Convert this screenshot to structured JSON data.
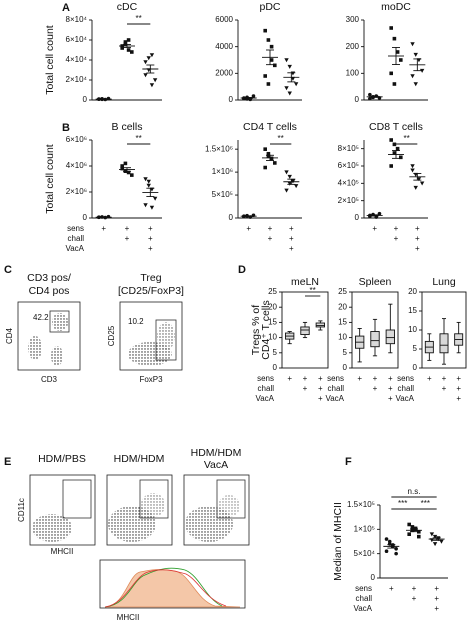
{
  "panel_labels": [
    "A",
    "B",
    "C",
    "D",
    "E",
    "F"
  ],
  "flow_c": [
    {
      "title": [
        "CD3 pos/",
        "CD4 pos"
      ],
      "gate": "42.2",
      "ylabel": "CD4",
      "xlabel": "CD3"
    },
    {
      "title": [
        "Treg",
        "[CD25/FoxP3]"
      ],
      "gate": "10.2",
      "ylabel": "CD25",
      "xlabel": "FoxP3"
    }
  ],
  "flow_e": {
    "plots": [
      {
        "title": [
          "HDM/PBS"
        ]
      },
      {
        "title": [
          "HDM/HDM"
        ]
      },
      {
        "title": [
          "HDM/HDM",
          "VacA"
        ]
      }
    ],
    "ylabel": "CD11c",
    "xlabel": "MHCII",
    "histogram_xlabel": "MHCII"
  },
  "chart_data": [
    {
      "type": "dot",
      "title": "cDC",
      "ylabel": "Total cell count",
      "ylim": [
        0,
        80000
      ],
      "yticks": [
        0,
        {
          "value": 20000,
          "label": "2×10⁴"
        },
        {
          "value": 40000,
          "label": "4×10⁴"
        },
        {
          "value": 60000,
          "label": "6×10⁴"
        },
        {
          "value": 80000,
          "label": "8×10⁴"
        }
      ],
      "groups": [
        [
          800,
          1200,
          500,
          1500,
          900,
          700
        ],
        [
          52000,
          56000,
          60000,
          48000,
          54000,
          58000,
          50000
        ],
        [
          38000,
          30000,
          45000,
          20000,
          25000,
          42000,
          15000
        ]
      ],
      "means": [
        950,
        54000,
        31000
      ],
      "sems": [
        150,
        1500,
        4000
      ],
      "significance": [
        {
          "label": "**",
          "groups": [
            1,
            2
          ]
        }
      ]
    },
    {
      "type": "dot",
      "title": "pDC",
      "ylim": [
        0,
        6000
      ],
      "yticks": [
        0,
        2000,
        4000,
        6000
      ],
      "groups": [
        [
          100,
          200,
          50,
          300,
          150,
          80
        ],
        [
          5200,
          4500,
          3000,
          2600,
          1800,
          1200,
          4000
        ],
        [
          3000,
          2500,
          1600,
          1200,
          900,
          500,
          2000
        ]
      ],
      "means": [
        150,
        3200,
        1700
      ],
      "sems": [
        40,
        550,
        340
      ]
    },
    {
      "type": "dot",
      "title": "moDC",
      "ylim": [
        0,
        300
      ],
      "yticks": [
        0,
        100,
        200,
        300
      ],
      "groups": [
        [
          5,
          10,
          15,
          8,
          20,
          12
        ],
        [
          270,
          230,
          180,
          150,
          100,
          60
        ],
        [
          210,
          170,
          150,
          110,
          90,
          60
        ]
      ],
      "means": [
        12,
        165,
        132
      ],
      "sems": [
        2,
        32,
        22
      ]
    },
    {
      "type": "dot",
      "title": "B cells",
      "ylabel": "Total cell count",
      "ylim": [
        0,
        6000000
      ],
      "yticks": [
        0,
        {
          "value": 2000000,
          "label": "2×10⁶"
        },
        {
          "value": 4000000,
          "label": "4×10⁶"
        },
        {
          "value": 6000000,
          "label": "6×10⁶"
        }
      ],
      "groups": [
        [
          50000,
          80000,
          30000,
          100000,
          60000
        ],
        [
          3800000,
          4200000,
          3500000,
          3300000,
          4000000,
          3600000
        ],
        [
          3000000,
          2500000,
          2200000,
          1500000,
          1000000,
          2800000,
          800000
        ]
      ],
      "means": [
        64000,
        3730000,
        1970000
      ],
      "sems": [
        12000,
        140000,
        320000
      ],
      "significance": [
        {
          "label": "**",
          "groups": [
            1,
            2
          ]
        }
      ],
      "condition_labels": [
        "sens",
        "chall",
        "VacA"
      ],
      "condition_marks": [
        [
          "+",
          "+",
          "+"
        ],
        [
          null,
          "+",
          "+"
        ],
        [
          null,
          null,
          "+"
        ]
      ]
    },
    {
      "type": "dot",
      "title": "CD4 T cells",
      "ylim": [
        0,
        1700000
      ],
      "yticks": [
        0,
        {
          "value": 500000,
          "label": "5×10⁵"
        },
        {
          "value": 1000000,
          "label": "1×10⁶"
        },
        {
          "value": 1500000,
          "label": "1.5×10⁶"
        }
      ],
      "groups": [
        [
          30000,
          50000,
          20000,
          60000,
          40000
        ],
        [
          1500000,
          1400000,
          1300000,
          1200000,
          1100000,
          1350000
        ],
        [
          1000000,
          900000,
          800000,
          700000,
          600000,
          750000
        ]
      ],
      "means": [
        40000,
        1310000,
        790000
      ],
      "sems": [
        7000,
        57000,
        57000
      ],
      "significance": [
        {
          "label": "**",
          "groups": [
            1,
            2
          ]
        }
      ],
      "condition_marks": [
        [
          "+",
          "+",
          "+"
        ],
        [
          null,
          "+",
          "+"
        ],
        [
          null,
          null,
          "+"
        ]
      ]
    },
    {
      "type": "dot",
      "title": "CD8 T cells",
      "ylim": [
        0,
        900000
      ],
      "yticks": [
        0,
        {
          "value": 200000,
          "label": "2×10⁵"
        },
        {
          "value": 400000,
          "label": "4×10⁵"
        },
        {
          "value": 600000,
          "label": "6×10⁵"
        },
        {
          "value": 800000,
          "label": "8×10⁵"
        }
      ],
      "groups": [
        [
          20000,
          40000,
          10000,
          50000,
          30000
        ],
        [
          900000,
          850000,
          800000,
          700000,
          600000,
          750000
        ],
        [
          600000,
          500000,
          450000,
          400000,
          550000,
          350000
        ]
      ],
      "means": [
        30000,
        733000,
        475000
      ],
      "sems": [
        7000,
        45000,
        38000
      ],
      "significance": [
        {
          "label": "**",
          "groups": [
            1,
            2
          ]
        }
      ],
      "condition_marks": [
        [
          "+",
          "+",
          "+"
        ],
        [
          null,
          "+",
          "+"
        ],
        [
          null,
          null,
          "+"
        ]
      ]
    },
    {
      "type": "box",
      "title": "meLN",
      "ylabel": [
        "Tregs % of",
        "CD4⁺ T cells"
      ],
      "ylim": [
        0,
        25
      ],
      "yticks": [
        0,
        5,
        10,
        15,
        20,
        25
      ],
      "boxes": [
        {
          "min": 8,
          "q1": 9.5,
          "median": 10.5,
          "q3": 11.5,
          "max": 12
        },
        {
          "min": 10,
          "q1": 11,
          "median": 12.5,
          "q3": 13.5,
          "max": 15
        },
        {
          "min": 12.5,
          "q1": 13.5,
          "median": 14,
          "q3": 14.8,
          "max": 15.5
        }
      ],
      "significance": [
        {
          "label": "**",
          "groups": [
            1,
            2
          ]
        }
      ],
      "condition_labels": [
        "sens",
        "chall",
        "VacA"
      ],
      "condition_marks": [
        [
          "+",
          "+",
          "+"
        ],
        [
          null,
          "+",
          "+"
        ],
        [
          null,
          null,
          "+"
        ]
      ]
    },
    {
      "type": "box",
      "title": "Spleen",
      "ylim": [
        0,
        25
      ],
      "yticks": [
        0,
        5,
        10,
        15,
        20,
        25
      ],
      "boxes": [
        {
          "min": 2,
          "q1": 6.5,
          "median": 8.5,
          "q3": 10.5,
          "max": 13
        },
        {
          "min": 4,
          "q1": 7,
          "median": 9,
          "q3": 12,
          "max": 16
        },
        {
          "min": 5,
          "q1": 8,
          "median": 10,
          "q3": 12.5,
          "max": 21
        }
      ],
      "condition_labels": [
        "sens",
        "chall",
        "VacA"
      ],
      "condition_marks": [
        [
          "+",
          "+",
          "+"
        ],
        [
          null,
          "+",
          "+"
        ],
        [
          null,
          null,
          "+"
        ]
      ]
    },
    {
      "type": "box",
      "title": "Lung",
      "ylim": [
        0,
        20
      ],
      "yticks": [
        0,
        5,
        10,
        15,
        20
      ],
      "boxes": [
        {
          "min": 2,
          "q1": 4,
          "median": 5.5,
          "q3": 7,
          "max": 9
        },
        {
          "min": 1,
          "q1": 4,
          "median": 6,
          "q3": 9,
          "max": 13
        },
        {
          "min": 4,
          "q1": 6,
          "median": 7.5,
          "q3": 9,
          "max": 12
        }
      ],
      "condition_labels": [
        "sens",
        "chall",
        "VacA"
      ],
      "condition_marks": [
        [
          "+",
          "+",
          "+"
        ],
        [
          null,
          "+",
          "+"
        ],
        [
          null,
          null,
          "+"
        ]
      ]
    },
    {
      "type": "dot",
      "ylabel": "Median of MHCII",
      "ylim": [
        0,
        150000
      ],
      "yticks": [
        0,
        {
          "value": 50000,
          "label": "5×10⁴"
        },
        {
          "value": 100000,
          "label": "1×10⁵"
        },
        {
          "value": 150000,
          "label": "1.5×10⁵"
        }
      ],
      "groups": [
        [
          80000,
          70000,
          65000,
          60000,
          55000,
          75000,
          68000,
          50000
        ],
        [
          110000,
          105000,
          100000,
          95000,
          90000,
          98000,
          102000,
          85000
        ],
        [
          90000,
          85000,
          80000,
          75000,
          78000,
          70000,
          82000
        ]
      ],
      "means": [
        65000,
        98000,
        80000
      ],
      "sems": [
        3500,
        2800,
        2600
      ],
      "significance": [
        {
          "label": "***",
          "groups": [
            0,
            1
          ]
        },
        {
          "label": "***",
          "groups": [
            1,
            2
          ]
        },
        {
          "label": "n.s.",
          "groups": [
            0,
            2
          ]
        }
      ],
      "condition_labels": [
        "sens",
        "chall",
        "VacA"
      ],
      "condition_marks": [
        [
          "+",
          "+",
          "+"
        ],
        [
          null,
          "+",
          "+"
        ],
        [
          null,
          null,
          "+"
        ]
      ]
    }
  ]
}
